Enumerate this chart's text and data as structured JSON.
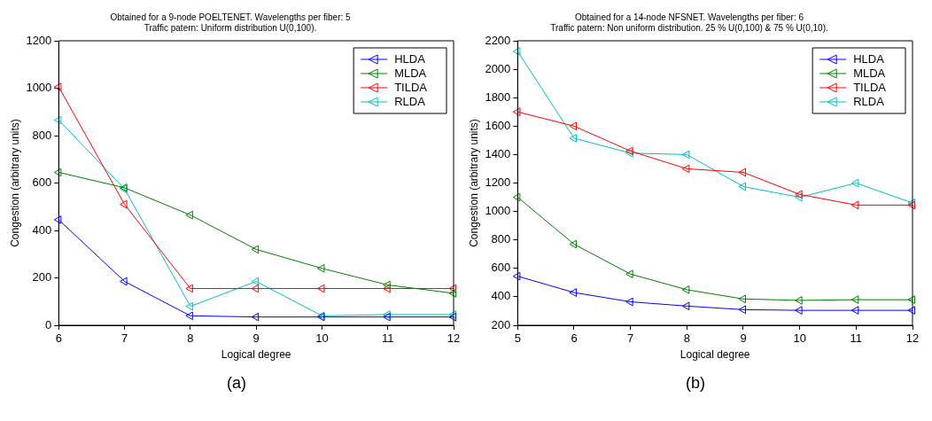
{
  "chart_data": [
    {
      "type": "line",
      "title": "Obtained for a 9-node POELTENET. Wavelengths per fiber: 5",
      "subtitle": "Traffic patern: Uniform distribution U(0,100).",
      "xlabel": "Logical degree",
      "ylabel": "Congestion (arbitrary units)",
      "x": [
        6,
        7,
        8,
        9,
        10,
        11,
        12
      ],
      "xlim": [
        6,
        12
      ],
      "xticks": [
        6,
        7,
        8,
        9,
        10,
        11,
        12
      ],
      "ylim": [
        0,
        1200
      ],
      "yticks": [
        0,
        200,
        400,
        600,
        800,
        1000,
        1200
      ],
      "grid": false,
      "legend": "top right",
      "marker": "triangle",
      "line_style": "solid",
      "annotations": [
        "(a)"
      ],
      "series": [
        {
          "name": "HLDA",
          "color": "#0000ff",
          "values": [
            445,
            185,
            40,
            35,
            35,
            35,
            35
          ]
        },
        {
          "name": "MLDA",
          "color": "#008000",
          "values": [
            645,
            580,
            465,
            320,
            240,
            170,
            135
          ]
        },
        {
          "name": "TILDA",
          "color": "#ff0000",
          "values": [
            1005,
            510,
            155,
            155,
            155,
            155,
            155
          ]
        },
        {
          "name": "RLDA",
          "color": "#00bfbf",
          "values": [
            865,
            575,
            80,
            185,
            40,
            45,
            45
          ]
        }
      ]
    },
    {
      "type": "line",
      "title": "Obtained for a 14-node NFSNET. Wavelengths per fiber: 6",
      "subtitle": "Traffic patern: Non uniform distribution. 25 % U(0,100) & 75 % U(0,10).",
      "xlabel": "Logical degree",
      "ylabel": "Congestion (arbitrary units)",
      "x": [
        5,
        6,
        7,
        8,
        9,
        10,
        11,
        12
      ],
      "xlim": [
        5,
        12
      ],
      "xticks": [
        5,
        6,
        7,
        8,
        9,
        10,
        11,
        12
      ],
      "ylim": [
        200,
        2200
      ],
      "yticks": [
        200,
        400,
        600,
        800,
        1000,
        1200,
        1400,
        1600,
        1800,
        2000,
        2200
      ],
      "grid": false,
      "legend": "top right",
      "marker": "triangle",
      "line_style": "solid",
      "annotations": [
        "(b)"
      ],
      "series": [
        {
          "name": "HLDA",
          "color": "#0000ff",
          "values": [
            545,
            430,
            365,
            335,
            310,
            305,
            305,
            305
          ]
        },
        {
          "name": "MLDA",
          "color": "#008000",
          "values": [
            1100,
            770,
            560,
            450,
            385,
            375,
            380,
            380
          ]
        },
        {
          "name": "TILDA",
          "color": "#ff0000",
          "values": [
            1700,
            1600,
            1425,
            1300,
            1275,
            1120,
            1045,
            1045
          ]
        },
        {
          "name": "RLDA",
          "color": "#00bfbf",
          "values": [
            2125,
            1515,
            1410,
            1400,
            1175,
            1100,
            1200,
            1060
          ]
        }
      ]
    }
  ]
}
